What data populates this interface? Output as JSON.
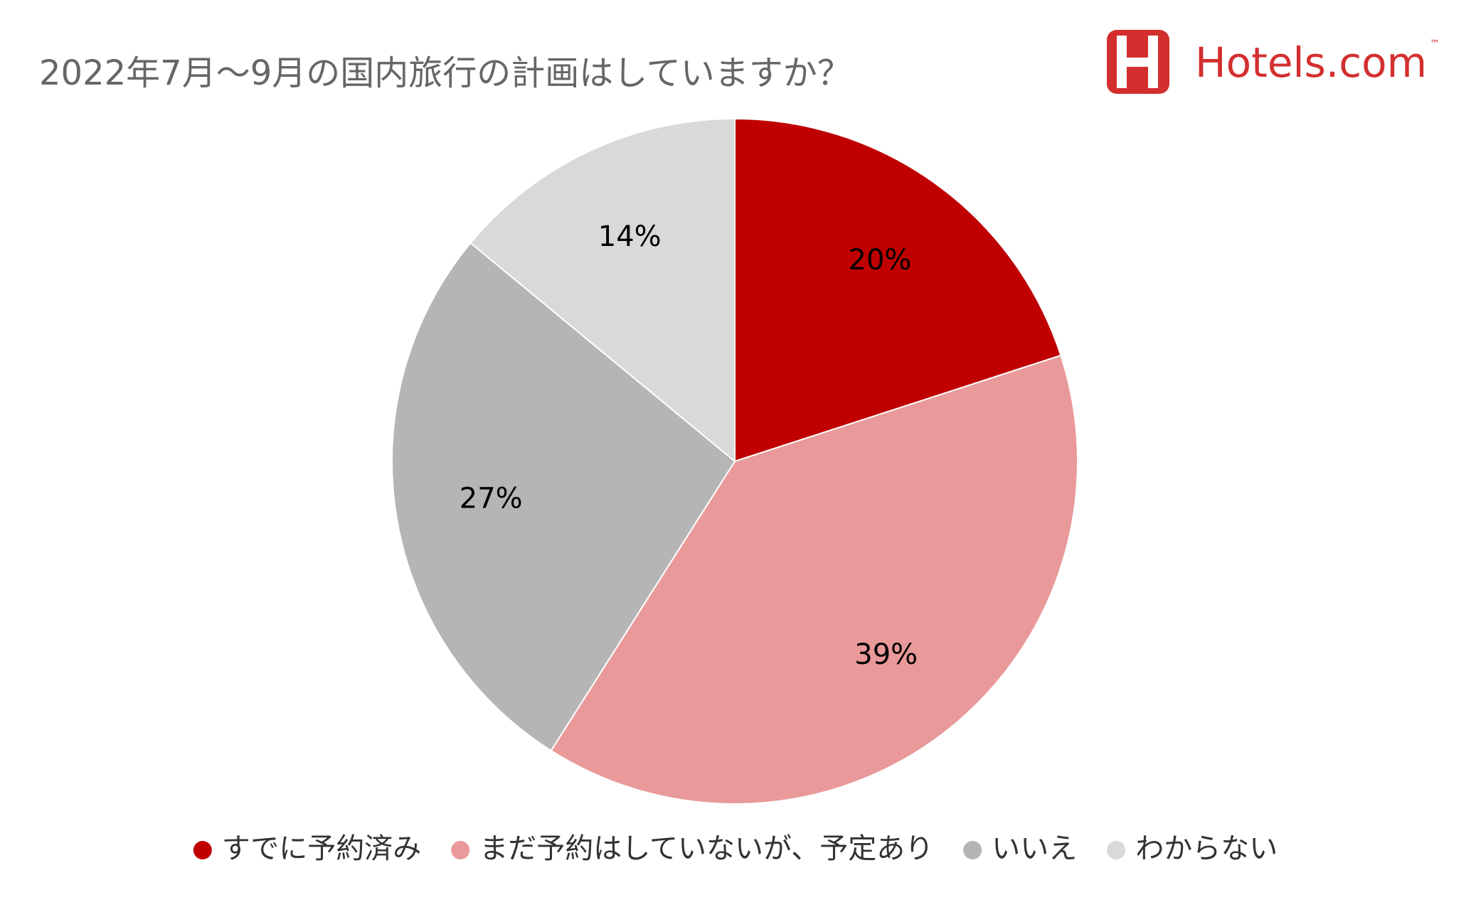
{
  "chart_data": {
    "type": "pie",
    "title": "2022年7月～9月の国内旅行の計画はしていますか？",
    "brand": "Hotels.com",
    "brand_mark": "™",
    "categories": [
      "すでに予約済み",
      "まだ予約はしていないが、予定あり",
      "いいえ",
      "わからない"
    ],
    "values": [
      20,
      39,
      27,
      14
    ],
    "value_labels": [
      "20%",
      "39%",
      "27%",
      "14%"
    ],
    "colors": [
      "#c00000",
      "#e99999",
      "#b5b5b5",
      "#d9d9d9"
    ],
    "legend": "bottom"
  }
}
